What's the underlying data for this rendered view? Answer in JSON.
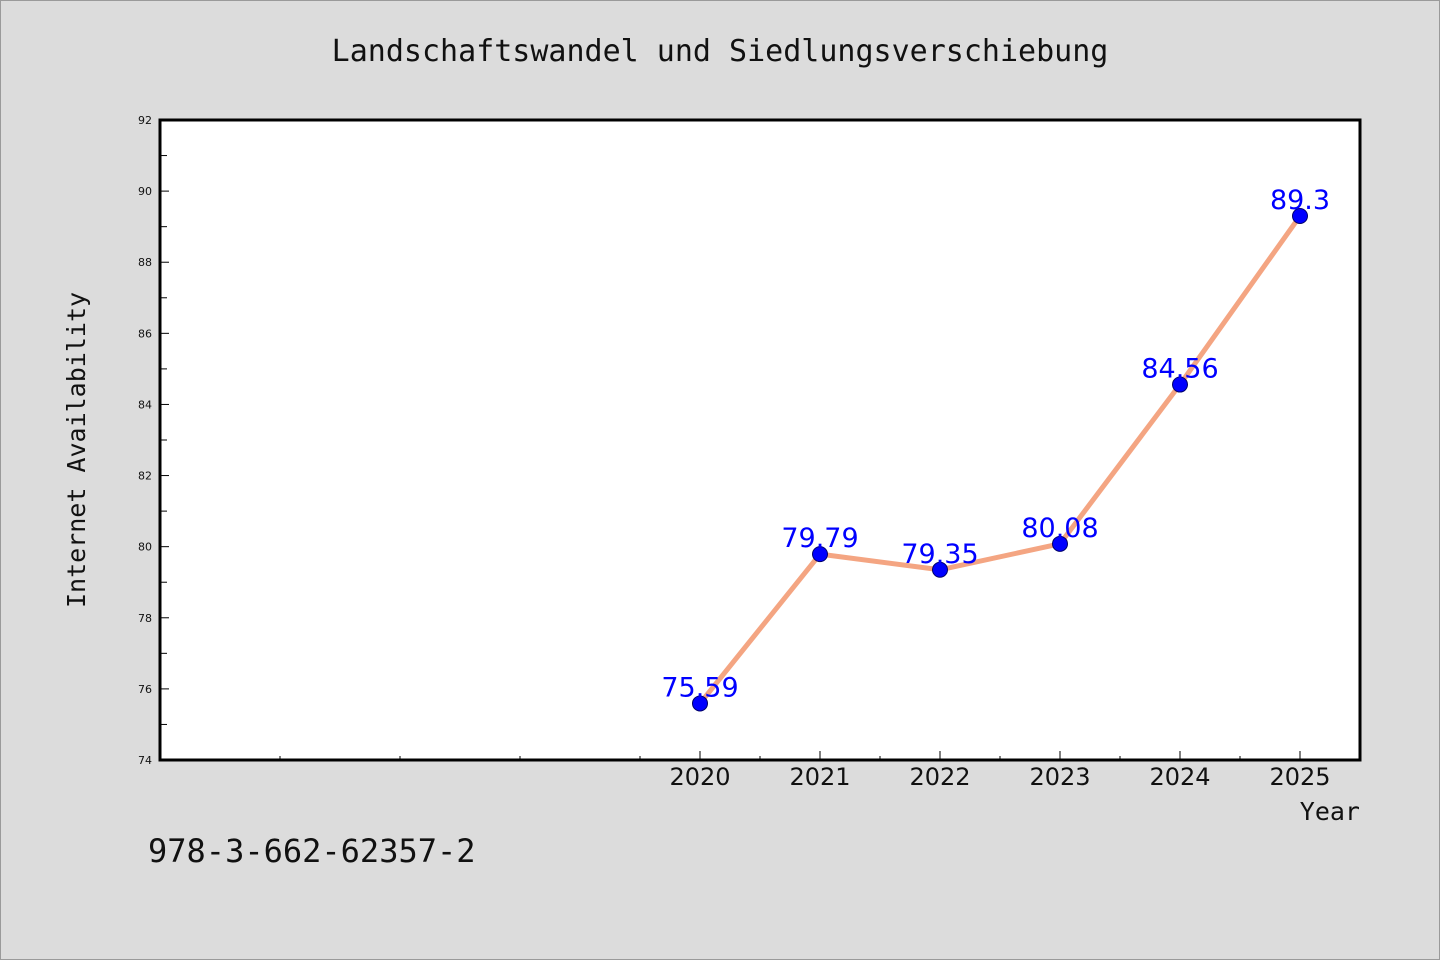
{
  "footer_text": "978-3-662-62357-2",
  "colors": {
    "background": "#dcdcdc",
    "plot_bg": "#ffffff",
    "line": "#f4a582",
    "marker": "#0000ff",
    "label": "#0000ff"
  },
  "chart_data": {
    "type": "line",
    "title": "Landschaftswandel und Siedlungsverschiebung",
    "xlabel": "Year",
    "ylabel": "Internet Availability",
    "x": [
      2020,
      2021,
      2022,
      2023,
      2024,
      2025
    ],
    "series": [
      {
        "values": [
          75.59,
          79.79,
          79.35,
          80.08,
          84.56,
          89.3
        ]
      }
    ],
    "data_labels": [
      "75.59",
      "79.79",
      "79.35",
      "80.08",
      "84.56",
      "89.3"
    ],
    "xlim": [
      2015.5,
      2025.5
    ],
    "ylim": [
      74,
      92
    ],
    "yticks": [
      74,
      76,
      78,
      80,
      82,
      84,
      86,
      88,
      90,
      92
    ],
    "xticks": [
      2020,
      2021,
      2022,
      2023,
      2024,
      2025
    ],
    "grid": false,
    "legend": "none"
  }
}
